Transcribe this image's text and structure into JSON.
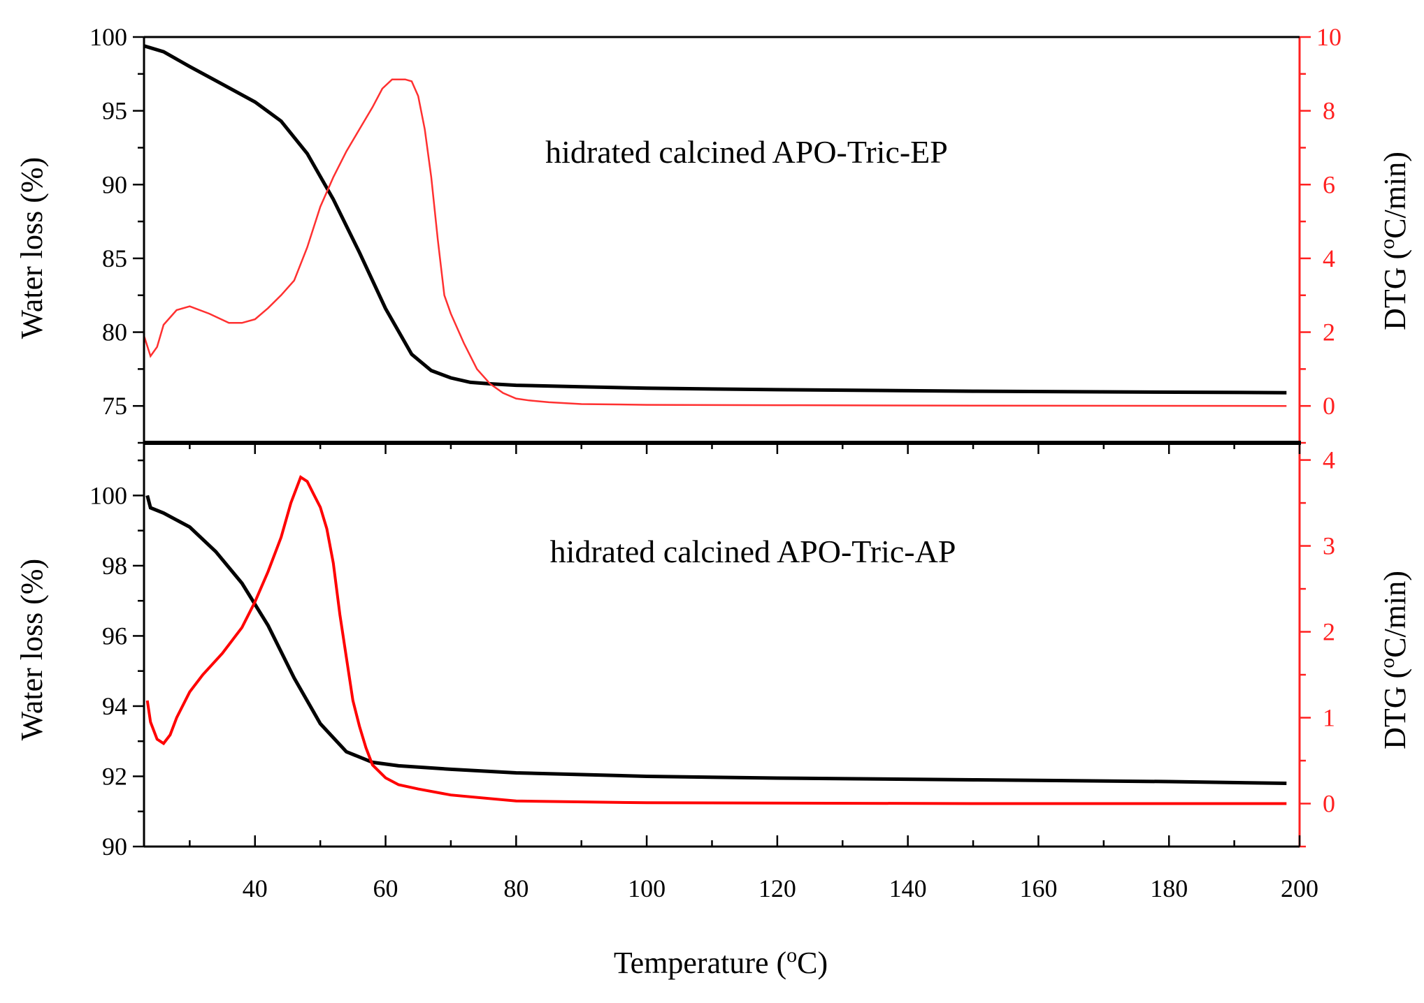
{
  "chart_data": [
    {
      "type": "line",
      "annotation": "hidrated calcined APO-Tric-EP",
      "ylabel": "Water loss (%)",
      "y2label_prefix": "DTG (",
      "y2label_sup": "o",
      "y2label_suffix": "C/min)",
      "xlim": [
        23,
        200
      ],
      "ylim": [
        72.5,
        100
      ],
      "y2lim": [
        -1,
        10
      ],
      "yticks": [
        75,
        80,
        85,
        90,
        95,
        100
      ],
      "y2ticks": [
        0,
        2,
        4,
        6,
        8,
        10
      ],
      "legend": "none",
      "grid": false,
      "series": [
        {
          "axis": "left",
          "color": "#000000",
          "x": [
            23,
            26,
            30,
            35,
            40,
            44,
            48,
            52,
            56,
            60,
            64,
            67,
            70,
            73,
            76,
            80,
            90,
            100,
            120,
            150,
            198
          ],
          "y": [
            99.4,
            99.0,
            98.0,
            96.8,
            95.6,
            94.3,
            92.1,
            89.0,
            85.4,
            81.6,
            78.5,
            77.4,
            76.9,
            76.6,
            76.5,
            76.4,
            76.3,
            76.2,
            76.1,
            76.0,
            75.9
          ]
        },
        {
          "axis": "right",
          "color": "#ff3030",
          "x": [
            23,
            24,
            25,
            26,
            28,
            30,
            33,
            36,
            38,
            40,
            42,
            44,
            46,
            48,
            50,
            52,
            54,
            56,
            58,
            59.5,
            61,
            62,
            63,
            64,
            65,
            66,
            67,
            68,
            69,
            70,
            72,
            74,
            76,
            78,
            80,
            82,
            85,
            90,
            100,
            120,
            150,
            198
          ],
          "y": [
            1.9,
            1.35,
            1.6,
            2.2,
            2.6,
            2.7,
            2.5,
            2.25,
            2.25,
            2.35,
            2.65,
            3.0,
            3.4,
            4.3,
            5.4,
            6.2,
            6.9,
            7.5,
            8.1,
            8.6,
            8.85,
            8.85,
            8.85,
            8.8,
            8.4,
            7.5,
            6.2,
            4.5,
            3.0,
            2.5,
            1.7,
            1.0,
            0.6,
            0.35,
            0.2,
            0.15,
            0.1,
            0.05,
            0.03,
            0.02,
            0.01,
            0.0
          ]
        }
      ]
    },
    {
      "type": "line",
      "annotation": "hidrated calcined APO-Tric-AP",
      "ylabel": "Water loss (%)",
      "y2label_prefix": "DTG (",
      "y2label_sup": "o",
      "y2label_suffix": "C/min)",
      "xlabel_prefix": "Temperature (",
      "xlabel_sup": "o",
      "xlabel_suffix": "C)",
      "xlim": [
        23,
        200
      ],
      "ylim": [
        90,
        101.5
      ],
      "y2lim": [
        -0.5,
        4.2
      ],
      "yticks": [
        90,
        92,
        94,
        96,
        98,
        100
      ],
      "y2ticks": [
        0,
        1,
        2,
        3,
        4
      ],
      "xticks": [
        40,
        60,
        80,
        100,
        120,
        140,
        160,
        180,
        200
      ],
      "legend": "none",
      "grid": false,
      "series": [
        {
          "axis": "left",
          "color": "#000000",
          "x": [
            23.5,
            24,
            26,
            30,
            34,
            38,
            42,
            46,
            50,
            54,
            58,
            62,
            70,
            80,
            100,
            120,
            150,
            180,
            198
          ],
          "y": [
            100.0,
            99.65,
            99.5,
            99.1,
            98.4,
            97.5,
            96.3,
            94.8,
            93.5,
            92.7,
            92.4,
            92.3,
            92.2,
            92.1,
            92.0,
            91.95,
            91.9,
            91.85,
            91.8
          ]
        },
        {
          "axis": "right",
          "color": "#ff0000",
          "x": [
            23.5,
            24,
            25,
            26,
            27,
            28,
            30,
            32,
            35,
            38,
            40,
            42,
            44,
            45.5,
            47,
            48,
            49,
            50,
            51,
            52,
            53,
            54,
            55,
            56,
            57,
            58,
            60,
            62,
            65,
            70,
            80,
            100,
            150,
            198
          ],
          "y": [
            1.2,
            0.95,
            0.75,
            0.7,
            0.8,
            1.0,
            1.3,
            1.5,
            1.75,
            2.05,
            2.35,
            2.7,
            3.1,
            3.5,
            3.8,
            3.75,
            3.6,
            3.45,
            3.2,
            2.8,
            2.2,
            1.7,
            1.2,
            0.9,
            0.65,
            0.45,
            0.3,
            0.22,
            0.17,
            0.1,
            0.03,
            0.01,
            0.0,
            0.0
          ]
        }
      ]
    }
  ]
}
